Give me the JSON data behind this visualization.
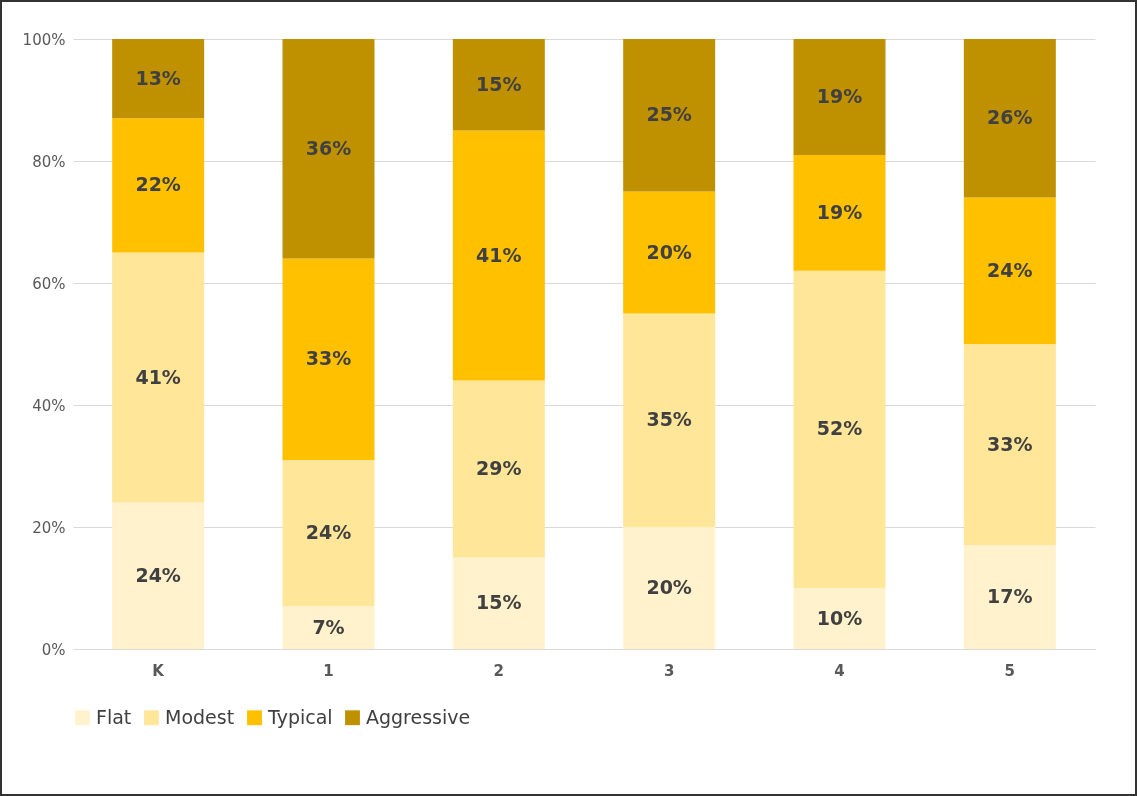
{
  "chart_data": {
    "type": "bar",
    "stacked": true,
    "categories": [
      "K",
      "1",
      "2",
      "3",
      "4",
      "5"
    ],
    "series": [
      {
        "name": "Flat",
        "color": "#fff2cc",
        "values": [
          24,
          7,
          15,
          20,
          10,
          17
        ],
        "value_labels": [
          "24%",
          "7%",
          "15%",
          "20%",
          "10%",
          "17%"
        ]
      },
      {
        "name": "Modest",
        "color": "#ffe699",
        "values": [
          41,
          24,
          29,
          35,
          52,
          33
        ],
        "value_labels": [
          "41%",
          "24%",
          "29%",
          "35%",
          "52%",
          "33%"
        ]
      },
      {
        "name": "Typical",
        "color": "#ffc000",
        "values": [
          22,
          33,
          41,
          20,
          19,
          24
        ],
        "value_labels": [
          "22%",
          "33%",
          "41%",
          "20%",
          "19%",
          "24%"
        ]
      },
      {
        "name": "Aggressive",
        "color": "#bf9000",
        "values": [
          13,
          36,
          15,
          25,
          19,
          26
        ],
        "value_labels": [
          "13%",
          "36%",
          "15%",
          "25%",
          "19%",
          "26%"
        ]
      }
    ],
    "ylim": [
      0,
      100
    ],
    "yticks": [
      {
        "value": 0,
        "label": "0%"
      },
      {
        "value": 20,
        "label": "20%"
      },
      {
        "value": 40,
        "label": "40%"
      },
      {
        "value": 60,
        "label": "60%"
      },
      {
        "value": 80,
        "label": "80%"
      },
      {
        "value": 100,
        "label": "100%"
      }
    ],
    "grid": "y",
    "legend": "bottom"
  }
}
